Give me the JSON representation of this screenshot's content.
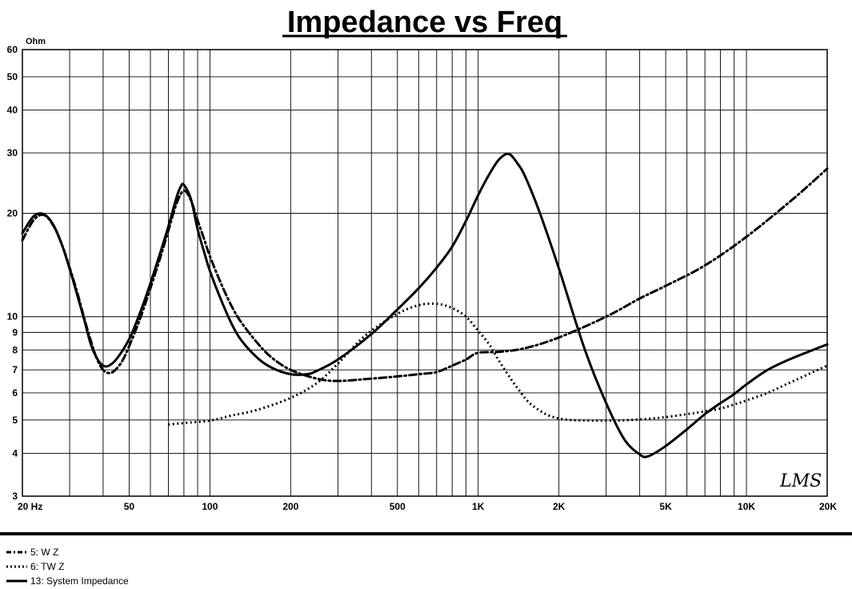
{
  "chart_data": {
    "type": "line",
    "title": "Impedance vs Freq",
    "ylabel": "Ohm",
    "xlabel": "",
    "xscale": "log",
    "yscale": "log",
    "xlim": [
      20,
      20000
    ],
    "ylim": [
      3,
      60
    ],
    "grid": true,
    "legend_position": "bottom-left",
    "x_ticks": [
      {
        "value": 20,
        "label": "20  Hz"
      },
      {
        "value": 50,
        "label": "50"
      },
      {
        "value": 100,
        "label": "100"
      },
      {
        "value": 200,
        "label": "200"
      },
      {
        "value": 500,
        "label": "500"
      },
      {
        "value": 1000,
        "label": "1K"
      },
      {
        "value": 2000,
        "label": "2K"
      },
      {
        "value": 5000,
        "label": "5K"
      },
      {
        "value": 10000,
        "label": "10K"
      },
      {
        "value": 20000,
        "label": "20K"
      }
    ],
    "y_ticks": [
      {
        "value": 3,
        "label": "3"
      },
      {
        "value": 4,
        "label": "4"
      },
      {
        "value": 5,
        "label": "5"
      },
      {
        "value": 6,
        "label": "6"
      },
      {
        "value": 7,
        "label": "7"
      },
      {
        "value": 8,
        "label": "8"
      },
      {
        "value": 9,
        "label": "9"
      },
      {
        "value": 10,
        "label": "10"
      },
      {
        "value": 20,
        "label": "20"
      },
      {
        "value": 30,
        "label": "30"
      },
      {
        "value": 40,
        "label": "40"
      },
      {
        "value": 50,
        "label": "50"
      },
      {
        "value": 60,
        "label": "60"
      }
    ],
    "series": [
      {
        "name": "5: W Z",
        "style": "dashdot",
        "color": "#000000",
        "points": [
          [
            20,
            16.7
          ],
          [
            22,
            19.1
          ],
          [
            24,
            19.8
          ],
          [
            26,
            18.5
          ],
          [
            28,
            16.3
          ],
          [
            30,
            13.9
          ],
          [
            32,
            11.8
          ],
          [
            34,
            9.9
          ],
          [
            36,
            8.5
          ],
          [
            38,
            7.5
          ],
          [
            40,
            7.0
          ],
          [
            42,
            6.85
          ],
          [
            44,
            6.95
          ],
          [
            47,
            7.4
          ],
          [
            50,
            8.2
          ],
          [
            55,
            9.9
          ],
          [
            60,
            12.1
          ],
          [
            65,
            14.7
          ],
          [
            70,
            17.8
          ],
          [
            75,
            21.3
          ],
          [
            80,
            23.3
          ],
          [
            85,
            21.8
          ],
          [
            90,
            19.1
          ],
          [
            95,
            16.9
          ],
          [
            100,
            15.0
          ],
          [
            110,
            12.5
          ],
          [
            120,
            10.8
          ],
          [
            130,
            9.7
          ],
          [
            150,
            8.4
          ],
          [
            170,
            7.6
          ],
          [
            200,
            7.0
          ],
          [
            250,
            6.6
          ],
          [
            300,
            6.5
          ],
          [
            400,
            6.6
          ],
          [
            500,
            6.7
          ],
          [
            600,
            6.8
          ],
          [
            700,
            6.9
          ],
          [
            800,
            7.2
          ],
          [
            900,
            7.5
          ],
          [
            1000,
            7.85
          ],
          [
            1200,
            7.9
          ],
          [
            1500,
            8.1
          ],
          [
            2000,
            8.7
          ],
          [
            3000,
            10.0
          ],
          [
            4000,
            11.3
          ],
          [
            5000,
            12.3
          ],
          [
            7000,
            14.1
          ],
          [
            10000,
            17.1
          ],
          [
            15000,
            22.1
          ],
          [
            20000,
            27.0
          ]
        ]
      },
      {
        "name": "6: TW Z",
        "style": "dotted",
        "color": "#000000",
        "points": [
          [
            70,
            4.85
          ],
          [
            80,
            4.9
          ],
          [
            100,
            4.98
          ],
          [
            120,
            5.15
          ],
          [
            150,
            5.35
          ],
          [
            200,
            5.8
          ],
          [
            250,
            6.4
          ],
          [
            300,
            7.3
          ],
          [
            350,
            8.3
          ],
          [
            400,
            9.1
          ],
          [
            500,
            10.2
          ],
          [
            600,
            10.8
          ],
          [
            700,
            10.9
          ],
          [
            800,
            10.6
          ],
          [
            900,
            10.0
          ],
          [
            1000,
            9.1
          ],
          [
            1100,
            8.3
          ],
          [
            1200,
            7.4
          ],
          [
            1400,
            6.2
          ],
          [
            1600,
            5.5
          ],
          [
            2000,
            5.05
          ],
          [
            3000,
            4.98
          ],
          [
            4000,
            5.02
          ],
          [
            5000,
            5.1
          ],
          [
            6000,
            5.2
          ],
          [
            7000,
            5.3
          ],
          [
            8000,
            5.4
          ],
          [
            9000,
            5.55
          ],
          [
            10000,
            5.7
          ],
          [
            12000,
            6.0
          ],
          [
            15000,
            6.5
          ],
          [
            20000,
            7.2
          ]
        ]
      },
      {
        "name": "13: System Impedance",
        "style": "solid",
        "color": "#000000",
        "points": [
          [
            20,
            17.5
          ],
          [
            22,
            19.6
          ],
          [
            24,
            19.9
          ],
          [
            26,
            18.6
          ],
          [
            28,
            16.3
          ],
          [
            30,
            13.8
          ],
          [
            32,
            11.6
          ],
          [
            34,
            9.8
          ],
          [
            36,
            8.3
          ],
          [
            38,
            7.55
          ],
          [
            40,
            7.2
          ],
          [
            42,
            7.2
          ],
          [
            45,
            7.55
          ],
          [
            50,
            8.6
          ],
          [
            55,
            10.3
          ],
          [
            60,
            12.5
          ],
          [
            65,
            15.2
          ],
          [
            70,
            18.3
          ],
          [
            75,
            22.2
          ],
          [
            78,
            24.0
          ],
          [
            80,
            24.2
          ],
          [
            85,
            22.0
          ],
          [
            90,
            18.0
          ],
          [
            95,
            15.5
          ],
          [
            100,
            13.6
          ],
          [
            110,
            11.2
          ],
          [
            120,
            9.6
          ],
          [
            130,
            8.6
          ],
          [
            150,
            7.6
          ],
          [
            170,
            7.1
          ],
          [
            200,
            6.8
          ],
          [
            230,
            6.8
          ],
          [
            250,
            6.95
          ],
          [
            300,
            7.5
          ],
          [
            400,
            8.9
          ],
          [
            500,
            10.5
          ],
          [
            600,
            12.1
          ],
          [
            700,
            13.9
          ],
          [
            800,
            16.0
          ],
          [
            900,
            19.0
          ],
          [
            1000,
            22.6
          ],
          [
            1100,
            26.0
          ],
          [
            1200,
            28.8
          ],
          [
            1300,
            29.8
          ],
          [
            1400,
            28.0
          ],
          [
            1500,
            25.5
          ],
          [
            1700,
            20.0
          ],
          [
            2000,
            13.8
          ],
          [
            2500,
            8.0
          ],
          [
            3000,
            5.6
          ],
          [
            3500,
            4.4
          ],
          [
            4000,
            3.97
          ],
          [
            4300,
            3.92
          ],
          [
            5000,
            4.2
          ],
          [
            6000,
            4.7
          ],
          [
            7000,
            5.2
          ],
          [
            8000,
            5.6
          ],
          [
            9000,
            5.95
          ],
          [
            10000,
            6.35
          ],
          [
            12000,
            7.0
          ],
          [
            15000,
            7.6
          ],
          [
            20000,
            8.3
          ]
        ]
      }
    ]
  },
  "logo_text": "LMS"
}
